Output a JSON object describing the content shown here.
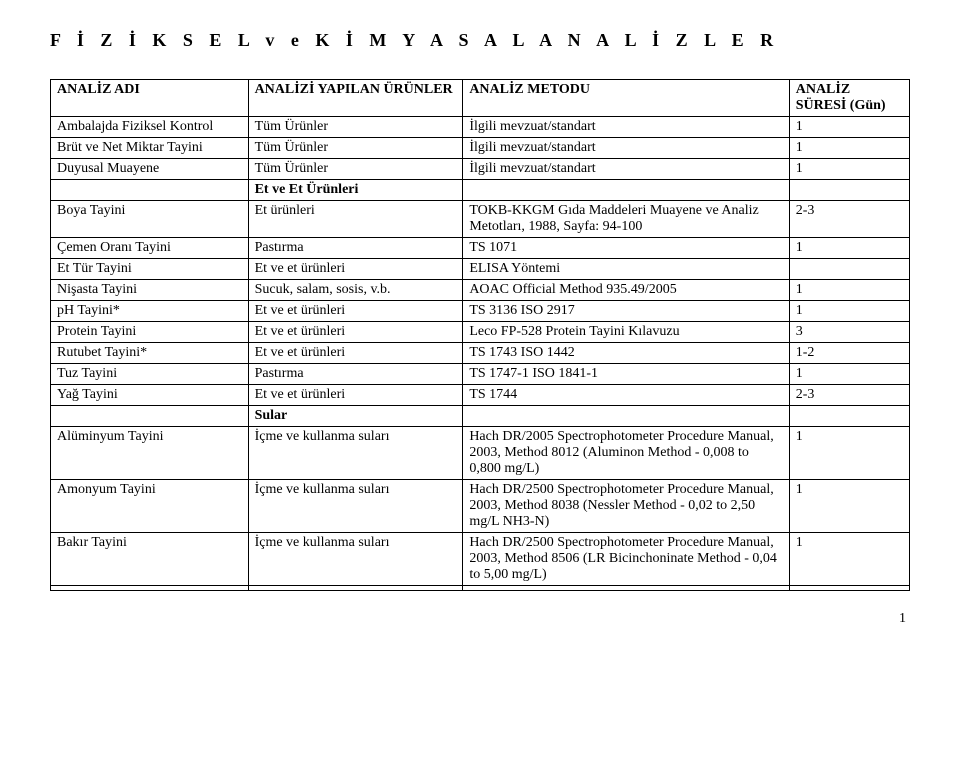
{
  "title": "F İ Z İ K S E L   v e   K İ M Y A S A L   A N A L İ Z L E R",
  "headers": {
    "c1": "ANALİZ ADI",
    "c2": "ANALİZİ YAPILAN ÜRÜNLER",
    "c3": "ANALİZ METODU",
    "c4": "ANALİZ SÜRESİ (Gün)"
  },
  "rows": [
    {
      "c1": "Ambalajda Fiziksel Kontrol",
      "c2": "Tüm Ürünler",
      "c3": "İlgili mevzuat/standart",
      "c4": "1"
    },
    {
      "c1": "Brüt ve Net Miktar Tayini",
      "c2": "Tüm Ürünler",
      "c3": "İlgili mevzuat/standart",
      "c4": "1"
    },
    {
      "c1": "Duyusal Muayene",
      "c2": "Tüm Ürünler",
      "c3": "İlgili mevzuat/standart",
      "c4": "1"
    },
    {
      "section": "Et ve Et Ürünleri"
    },
    {
      "c1": "Boya Tayini",
      "c2": "Et ürünleri",
      "c3": "TOKB-KKGM Gıda Maddeleri Muayene ve Analiz Metotları, 1988, Sayfa: 94-100",
      "c4": "2-3"
    },
    {
      "c1": "Çemen Oranı Tayini",
      "c2": "Pastırma",
      "c3": "TS 1071",
      "c4": "1"
    },
    {
      "c1": "Et Tür Tayini",
      "c2": "Et ve et ürünleri",
      "c3": "ELISA Yöntemi",
      "c4": ""
    },
    {
      "c1": "Nişasta Tayini",
      "c2": "Sucuk, salam, sosis, v.b.",
      "c3": "AOAC Official Method 935.49/2005",
      "c4": "1"
    },
    {
      "c1": "pH Tayini*",
      "c2": "Et ve et ürünleri",
      "c3": "TS 3136 ISO 2917",
      "c4": "1"
    },
    {
      "c1": "Protein Tayini",
      "c2": "Et ve et ürünleri",
      "c3": "Leco FP-528 Protein Tayini Kılavuzu",
      "c4": "3"
    },
    {
      "c1": "Rutubet Tayini*",
      "c2": "Et ve et ürünleri",
      "c3": "TS 1743 ISO 1442",
      "c4": "1-2"
    },
    {
      "c1": "Tuz Tayini",
      "c2": "Pastırma",
      "c3": "TS 1747-1 ISO 1841-1",
      "c4": "1"
    },
    {
      "c1": "Yağ Tayini",
      "c2": "Et ve et ürünleri",
      "c3": "TS 1744",
      "c4": "2-3"
    },
    {
      "section": "Sular"
    },
    {
      "c1": "Alüminyum Tayini",
      "c2": "İçme ve kullanma suları",
      "c3": "Hach DR/2005 Spectrophotometer Procedure Manual, 2003, Method 8012 (Aluminon Method - 0,008 to 0,800 mg/L)",
      "c4": "1"
    },
    {
      "c1": "Amonyum Tayini",
      "c2": "İçme ve kullanma suları",
      "c3": "Hach DR/2500 Spectrophotometer Procedure Manual, 2003, Method 8038 (Nessler Method - 0,02 to 2,50 mg/L NH3-N)",
      "c4": "1"
    },
    {
      "c1": "Bakır Tayini",
      "c2": "İçme ve kullanma suları",
      "c3": "Hach DR/2500 Spectrophotometer Procedure Manual, 2003, Method 8506 (LR Bicinchoninate Method - 0,04 to 5,00 mg/L)",
      "c4": "1"
    },
    {
      "c1": "",
      "c2": "",
      "c3": "",
      "c4": ""
    }
  ],
  "page_number": "1",
  "style": {
    "font_family": "Times New Roman",
    "title_fontsize": 18,
    "title_letter_spacing": 6,
    "cell_fontsize": 14,
    "border_color": "#000000",
    "background_color": "#ffffff",
    "text_color": "#000000",
    "col_widths_pct": [
      23,
      25,
      38,
      14
    ]
  }
}
